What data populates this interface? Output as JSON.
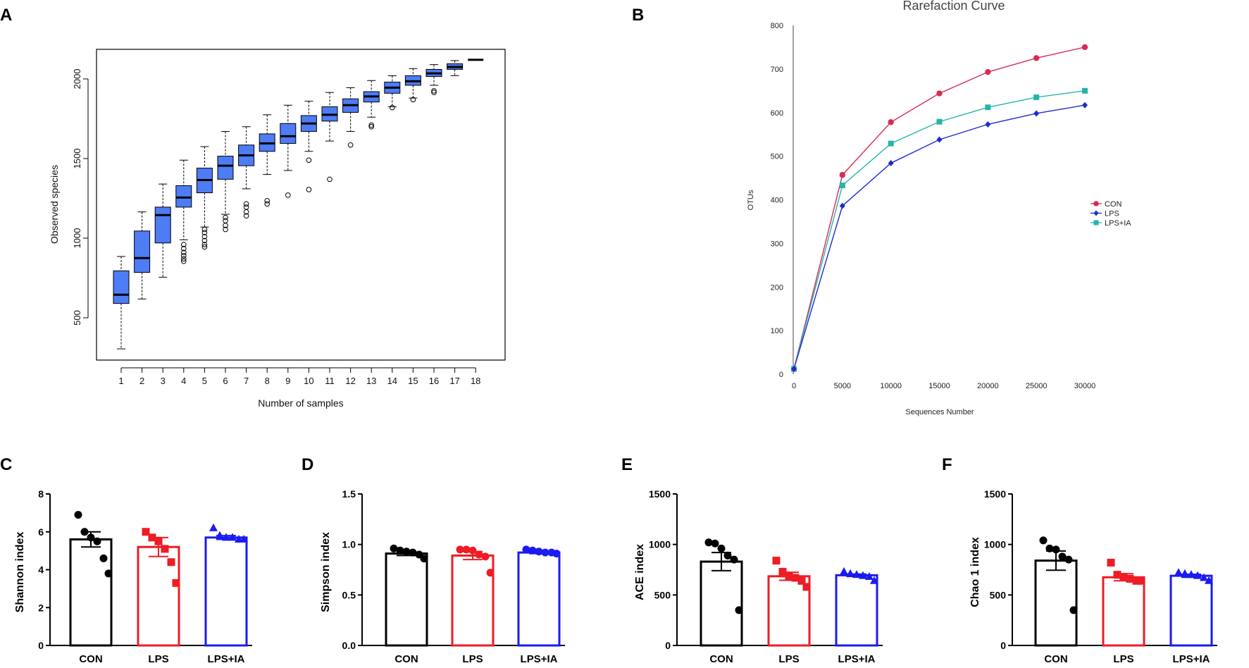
{
  "panels": {
    "a": "A",
    "b": "B",
    "c": "C",
    "d": "D",
    "e": "E",
    "f": "F"
  },
  "colors": {
    "box_fill": "#4d7cf5",
    "con": "#d62c55",
    "lps": "#1f2ad1",
    "lps_ia": "#26b4a8",
    "bar_con": "#000000",
    "bar_lps": "#ee1c24",
    "bar_ia": "#1b1bf0"
  },
  "chart_data": [
    {
      "id": "A",
      "type": "box",
      "title": "",
      "xlabel": "Number of samples",
      "ylabel": "Observed species",
      "ylim": [
        260,
        2200
      ],
      "yticks": [
        500,
        1000,
        1500,
        2000
      ],
      "categories": [
        "1",
        "2",
        "3",
        "4",
        "5",
        "6",
        "7",
        "8",
        "9",
        "10",
        "11",
        "12",
        "13",
        "14",
        "15",
        "16",
        "17",
        "18"
      ],
      "boxes": [
        {
          "min": 305,
          "q1": 590,
          "median": 645,
          "q3": 795,
          "max": 885,
          "outliers": []
        },
        {
          "min": 618,
          "q1": 785,
          "median": 875,
          "q3": 1045,
          "max": 1165,
          "outliers": []
        },
        {
          "min": 755,
          "q1": 970,
          "median": 1145,
          "q3": 1195,
          "max": 1340,
          "outliers": []
        },
        {
          "min": 990,
          "q1": 1195,
          "median": 1255,
          "q3": 1330,
          "max": 1490,
          "outliers": [
            960,
            935,
            910,
            890,
            870,
            855
          ]
        },
        {
          "min": 1070,
          "q1": 1285,
          "median": 1365,
          "q3": 1440,
          "max": 1575,
          "outliers": [
            1055,
            1035,
            1010,
            985,
            960,
            945
          ]
        },
        {
          "min": 1150,
          "q1": 1370,
          "median": 1455,
          "q3": 1515,
          "max": 1670,
          "outliers": [
            1130,
            1110,
            1080,
            1055
          ]
        },
        {
          "min": 1310,
          "q1": 1455,
          "median": 1520,
          "q3": 1585,
          "max": 1700,
          "outliers": [
            1215,
            1195,
            1165,
            1140
          ]
        },
        {
          "min": 1400,
          "q1": 1545,
          "median": 1595,
          "q3": 1655,
          "max": 1775,
          "outliers": [
            1235,
            1215
          ]
        },
        {
          "min": 1425,
          "q1": 1595,
          "median": 1640,
          "q3": 1720,
          "max": 1835,
          "outliers": [
            1270
          ]
        },
        {
          "min": 1545,
          "q1": 1670,
          "median": 1720,
          "q3": 1770,
          "max": 1860,
          "outliers": [
            1490,
            1305
          ]
        },
        {
          "min": 1610,
          "q1": 1735,
          "median": 1775,
          "q3": 1825,
          "max": 1915,
          "outliers": [
            1370
          ]
        },
        {
          "min": 1670,
          "q1": 1790,
          "median": 1835,
          "q3": 1875,
          "max": 1945,
          "outliers": [
            1585
          ]
        },
        {
          "min": 1760,
          "q1": 1855,
          "median": 1890,
          "q3": 1920,
          "max": 1990,
          "outliers": [
            1710,
            1700
          ]
        },
        {
          "min": 1825,
          "q1": 1910,
          "median": 1945,
          "q3": 1980,
          "max": 2020,
          "outliers": [
            1820
          ]
        },
        {
          "min": 1880,
          "q1": 1960,
          "median": 1985,
          "q3": 2020,
          "max": 2065,
          "outliers": [
            1870
          ]
        },
        {
          "min": 1960,
          "q1": 2015,
          "median": 2035,
          "q3": 2060,
          "max": 2090,
          "outliers": [
            1925,
            1915
          ]
        },
        {
          "min": 2020,
          "q1": 2060,
          "median": 2075,
          "q3": 2095,
          "max": 2115,
          "outliers": []
        },
        {
          "min": 2120,
          "q1": 2120,
          "median": 2120,
          "q3": 2120,
          "max": 2120,
          "outliers": []
        }
      ]
    },
    {
      "id": "B",
      "type": "line",
      "title": "Rarefaction Curve",
      "xlabel": "Sequences Number",
      "ylabel": "OTUs",
      "xlim": [
        0,
        30000
      ],
      "ylim": [
        0,
        800
      ],
      "xticks": [
        0,
        5000,
        10000,
        15000,
        20000,
        25000,
        30000
      ],
      "yticks": [
        0,
        100,
        200,
        300,
        400,
        500,
        600,
        700,
        800
      ],
      "x": [
        0,
        5000,
        10000,
        15000,
        20000,
        25000,
        30000
      ],
      "legend_position": "right",
      "series": [
        {
          "name": "CON",
          "marker": "circle",
          "values": [
            12,
            457,
            578,
            644,
            693,
            725,
            750
          ]
        },
        {
          "name": "LPS",
          "marker": "diamond",
          "values": [
            12,
            386,
            484,
            538,
            573,
            598,
            617
          ]
        },
        {
          "name": "LPS+IA",
          "marker": "square",
          "values": [
            12,
            433,
            529,
            579,
            612,
            635,
            650
          ]
        }
      ]
    },
    {
      "id": "C",
      "type": "bar",
      "ylabel": "Shannon index",
      "ylim": [
        0,
        8
      ],
      "yticks": [
        0,
        2,
        4,
        6,
        8
      ],
      "categories": [
        "CON",
        "LPS",
        "LPS+IA"
      ],
      "means": [
        5.6,
        5.2,
        5.7
      ],
      "sem": [
        0.4,
        0.5,
        0.1
      ],
      "points": [
        [
          6.9,
          6.0,
          5.7,
          5.5,
          4.6,
          3.8
        ],
        [
          6.0,
          5.7,
          5.5,
          5.1,
          4.4,
          3.3
        ],
        [
          6.2,
          5.8,
          5.7,
          5.7,
          5.6,
          5.6
        ]
      ]
    },
    {
      "id": "D",
      "type": "bar",
      "ylabel": "Simpson index",
      "ylim": [
        0,
        1.5
      ],
      "yticks": [
        0.0,
        0.5,
        1.0,
        1.5
      ],
      "yticklabels": [
        "0.0",
        "0.5",
        "1.0",
        "1.5"
      ],
      "categories": [
        "CON",
        "LPS",
        "LPS+IA"
      ],
      "means": [
        0.91,
        0.89,
        0.92
      ],
      "sem": [
        0.02,
        0.04,
        0.01
      ],
      "points": [
        [
          0.96,
          0.94,
          0.93,
          0.92,
          0.9,
          0.86
        ],
        [
          0.95,
          0.95,
          0.94,
          0.9,
          0.88,
          0.72
        ],
        [
          0.95,
          0.94,
          0.93,
          0.92,
          0.92,
          0.91
        ]
      ]
    },
    {
      "id": "E",
      "type": "bar",
      "ylabel": "ACE index",
      "ylim": [
        0,
        1500
      ],
      "yticks": [
        0,
        500,
        1000,
        1500
      ],
      "categories": [
        "CON",
        "LPS",
        "LPS+IA"
      ],
      "means": [
        830,
        685,
        695
      ],
      "sem": [
        90,
        40,
        12
      ],
      "points": [
        [
          1020,
          1010,
          960,
          890,
          850,
          350
        ],
        [
          840,
          730,
          690,
          670,
          640,
          580
        ],
        [
          730,
          710,
          700,
          690,
          680,
          640
        ]
      ]
    },
    {
      "id": "F",
      "type": "bar",
      "ylabel": "Chao 1 index",
      "ylim": [
        0,
        1500
      ],
      "yticks": [
        0,
        500,
        1000,
        1500
      ],
      "categories": [
        "CON",
        "LPS",
        "LPS+IA"
      ],
      "means": [
        840,
        675,
        690
      ],
      "sem": [
        95,
        35,
        15
      ],
      "points": [
        [
          1040,
          960,
          950,
          880,
          850,
          350
        ],
        [
          820,
          700,
          680,
          660,
          640,
          640
        ],
        [
          720,
          710,
          700,
          690,
          670,
          640
        ]
      ]
    }
  ]
}
